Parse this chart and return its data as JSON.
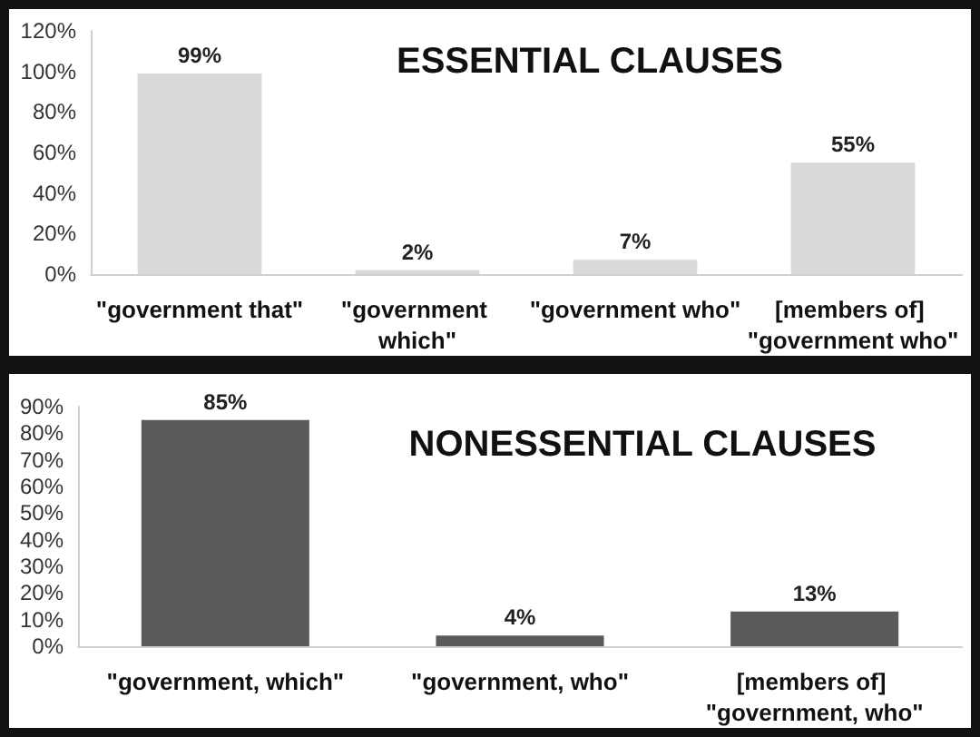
{
  "chart_data": [
    {
      "type": "bar",
      "title": "ESSENTIAL CLAUSES",
      "categories": [
        "\"government that\"",
        "\"government which\"",
        "\"government who\"",
        "[members of] \"government who\""
      ],
      "values": [
        99,
        2,
        7,
        55
      ],
      "color": "#d9d9d9",
      "value_labels": [
        "99%",
        "2%",
        "7%",
        "55%"
      ],
      "ylim": [
        0,
        120
      ],
      "yticks": [
        {
          "value": 0,
          "label": "0%"
        },
        {
          "value": 20,
          "label": "20%"
        },
        {
          "value": 40,
          "label": "40%"
        },
        {
          "value": 60,
          "label": "60%"
        },
        {
          "value": 80,
          "label": "80%"
        },
        {
          "value": 100,
          "label": "100%"
        },
        {
          "value": 120,
          "label": "120%"
        }
      ]
    },
    {
      "type": "bar",
      "title": "NONESSENTIAL CLAUSES",
      "categories": [
        "\"government, which\"",
        "\"government, who\"",
        "[members of] \"government, who\""
      ],
      "values": [
        85,
        4,
        13
      ],
      "color": "#5a5a5a",
      "value_labels": [
        "85%",
        "4%",
        "13%"
      ],
      "ylim": [
        0,
        90
      ],
      "yticks": [
        {
          "value": 0,
          "label": "0%"
        },
        {
          "value": 10,
          "label": "10%"
        },
        {
          "value": 20,
          "label": "20%"
        },
        {
          "value": 30,
          "label": "30%"
        },
        {
          "value": 40,
          "label": "40%"
        },
        {
          "value": 50,
          "label": "50%"
        },
        {
          "value": 60,
          "label": "60%"
        },
        {
          "value": 70,
          "label": "70%"
        },
        {
          "value": 80,
          "label": "80%"
        },
        {
          "value": 90,
          "label": "90%"
        }
      ]
    }
  ]
}
